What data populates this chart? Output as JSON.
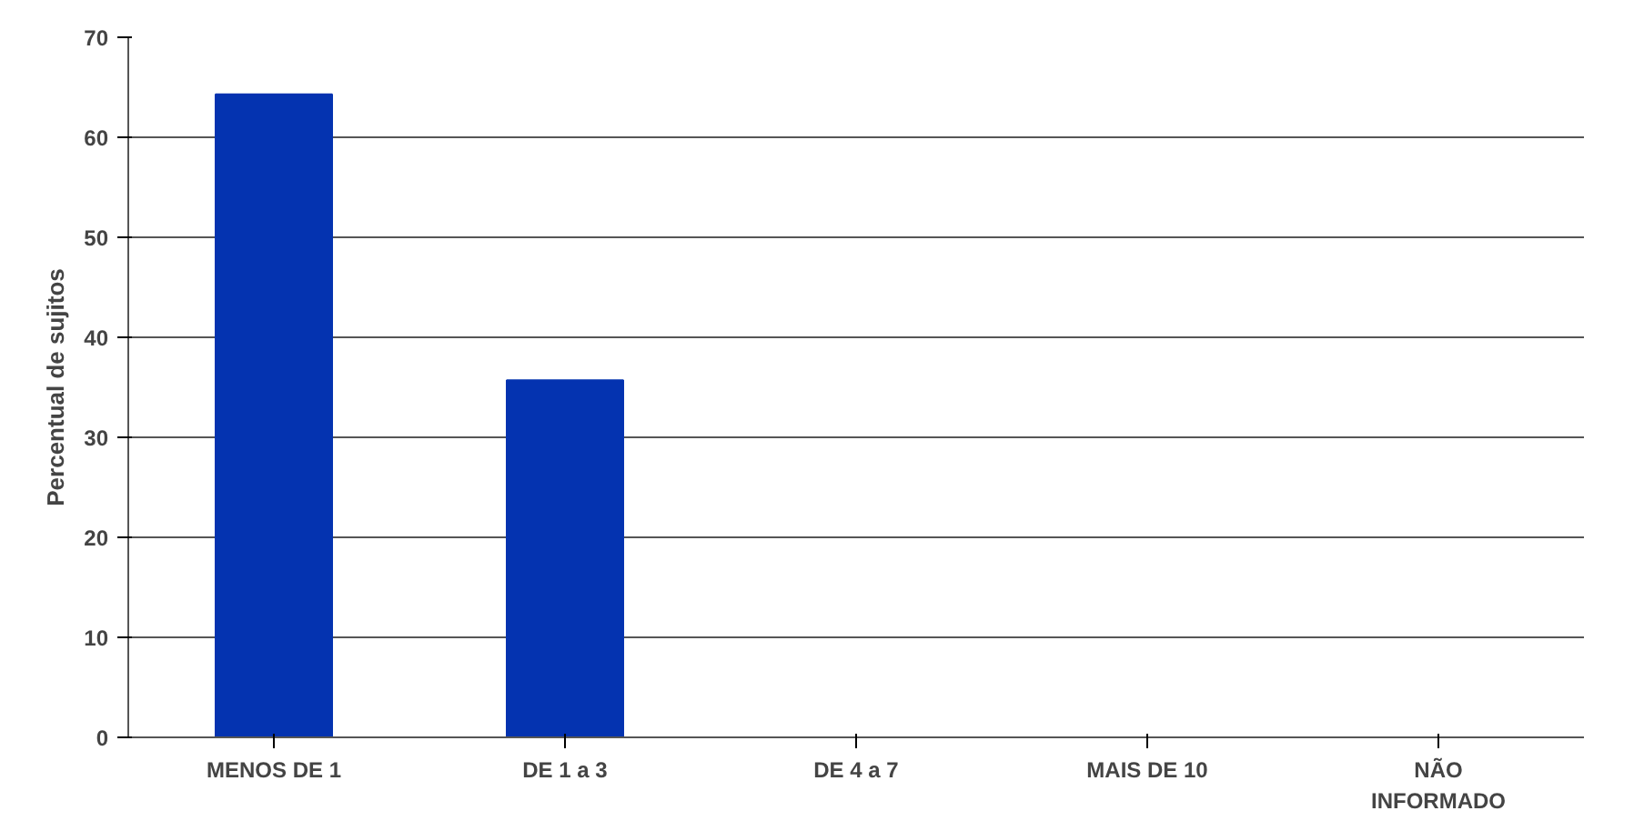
{
  "chart_data": {
    "type": "bar",
    "ylabel": "Percentual de sujitos",
    "categories": [
      "MENOS DE 1",
      "DE 1 a 3",
      "DE 4 a 7",
      "MAIS DE 10",
      "NÃO\nINFORMADO"
    ],
    "values": [
      64.3,
      35.7,
      0,
      0,
      0
    ],
    "color": "#0433b0",
    "ylim": [
      0,
      70
    ],
    "yticks": [
      0,
      10,
      20,
      30,
      40,
      50,
      60,
      70
    ],
    "grid": "y"
  }
}
